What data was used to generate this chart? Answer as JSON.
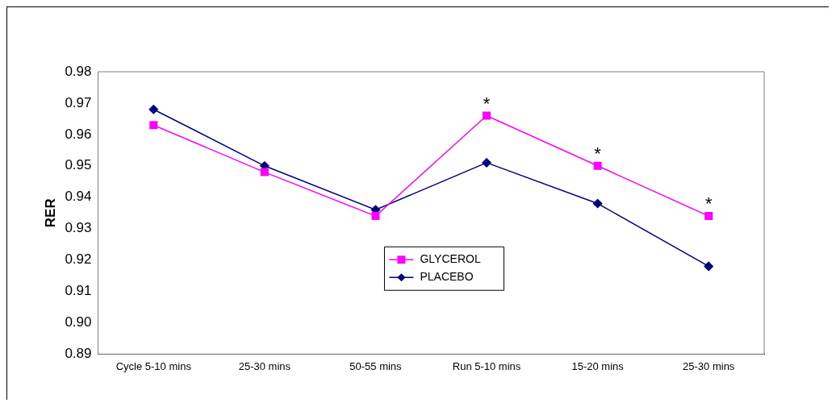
{
  "chart_data": {
    "type": "line",
    "ylabel": "RER",
    "categories": [
      "Cycle 5-10 mins",
      "25-30 mins",
      "50-55 mins",
      "Run 5-10 mins",
      "15-20 mins",
      "25-30 mins"
    ],
    "series": [
      {
        "name": "GLYCEROL",
        "color": "#ff00ff",
        "marker": "square",
        "values": [
          0.963,
          0.948,
          0.934,
          0.966,
          0.95,
          0.934
        ],
        "value_labels": [
          null,
          null,
          null,
          "*",
          "*",
          "*"
        ]
      },
      {
        "name": "PLACEBO",
        "color": "#000080",
        "marker": "diamond",
        "values": [
          0.968,
          0.95,
          0.936,
          0.951,
          0.938,
          0.918
        ]
      }
    ],
    "ylim": [
      0.89,
      0.98
    ],
    "yticks": [
      {
        "value": 0.89,
        "label": "0.89"
      },
      {
        "value": 0.9,
        "label": "0.90"
      },
      {
        "value": 0.91,
        "label": "0.91"
      },
      {
        "value": 0.92,
        "label": "0.92"
      },
      {
        "value": 0.93,
        "label": "0.93"
      },
      {
        "value": 0.94,
        "label": "0.94"
      },
      {
        "value": 0.95,
        "label": "0.95"
      },
      {
        "value": 0.96,
        "label": "0.96"
      },
      {
        "value": 0.97,
        "label": "0.97"
      },
      {
        "value": 0.98,
        "label": "0.98"
      }
    ],
    "grid": false,
    "legend": "center",
    "line_style": "solid"
  }
}
